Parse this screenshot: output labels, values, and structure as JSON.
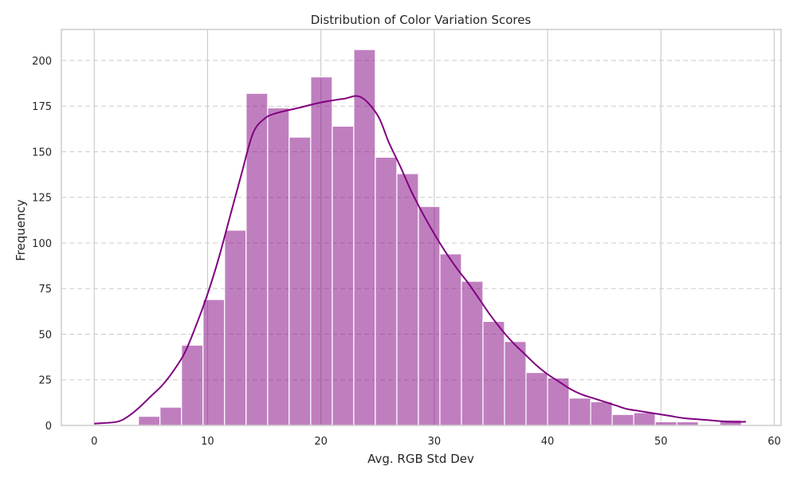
{
  "chart_data": {
    "type": "bar",
    "title": "Distribution of Color Variation Scores",
    "xlabel": "Avg. RGB Std Dev",
    "ylabel": "Frequency",
    "xlim": [
      -2.9,
      60.6
    ],
    "ylim": [
      0,
      217
    ],
    "xticks": [
      0,
      10,
      20,
      30,
      40,
      50,
      60
    ],
    "yticks": [
      0,
      25,
      50,
      75,
      100,
      125,
      150,
      175,
      200
    ],
    "grid": {
      "vertical": "solid",
      "horizontal": "dashed"
    },
    "colors": {
      "bar": "#800080",
      "kde": "#800080",
      "grid": "#cccccc",
      "frame": "#cccccc"
    },
    "bin_edges": [
      3.9,
      5.8,
      7.7,
      9.6,
      11.5,
      13.4,
      15.3,
      17.2,
      19.1,
      21.0,
      22.9,
      24.8,
      26.7,
      28.6,
      30.5,
      32.4,
      34.3,
      36.2,
      38.1,
      40.0,
      41.9,
      43.8,
      45.7,
      47.6,
      49.5,
      51.4,
      53.3,
      55.2,
      57.1
    ],
    "values": [
      5,
      10,
      44,
      69,
      107,
      182,
      174,
      158,
      191,
      164,
      206,
      147,
      138,
      120,
      94,
      79,
      57,
      46,
      29,
      26,
      15,
      13,
      6,
      7,
      2,
      2,
      0,
      3
    ],
    "kde": {
      "x": [
        0,
        2,
        3,
        4,
        5,
        6,
        7,
        8,
        9,
        10,
        11,
        12,
        13,
        14,
        15,
        16,
        18,
        20,
        22,
        23.5,
        25,
        26,
        27,
        28,
        29,
        30,
        31,
        32,
        33,
        34,
        35,
        36,
        37,
        38,
        39,
        40,
        41,
        42,
        43,
        44,
        45,
        46,
        47,
        48,
        49,
        50,
        51,
        52,
        54,
        56,
        57.5
      ],
      "y": [
        1,
        2,
        5,
        10,
        16,
        22,
        30,
        40,
        55,
        72,
        92,
        115,
        138,
        160,
        168,
        171,
        174,
        177,
        179,
        180,
        170,
        155,
        142,
        128,
        116,
        105,
        95,
        86,
        78,
        69,
        60,
        52,
        45,
        39,
        33,
        28,
        24,
        20,
        17,
        15,
        13,
        11,
        9,
        8,
        7,
        6,
        5,
        4,
        3,
        2,
        2
      ]
    }
  }
}
